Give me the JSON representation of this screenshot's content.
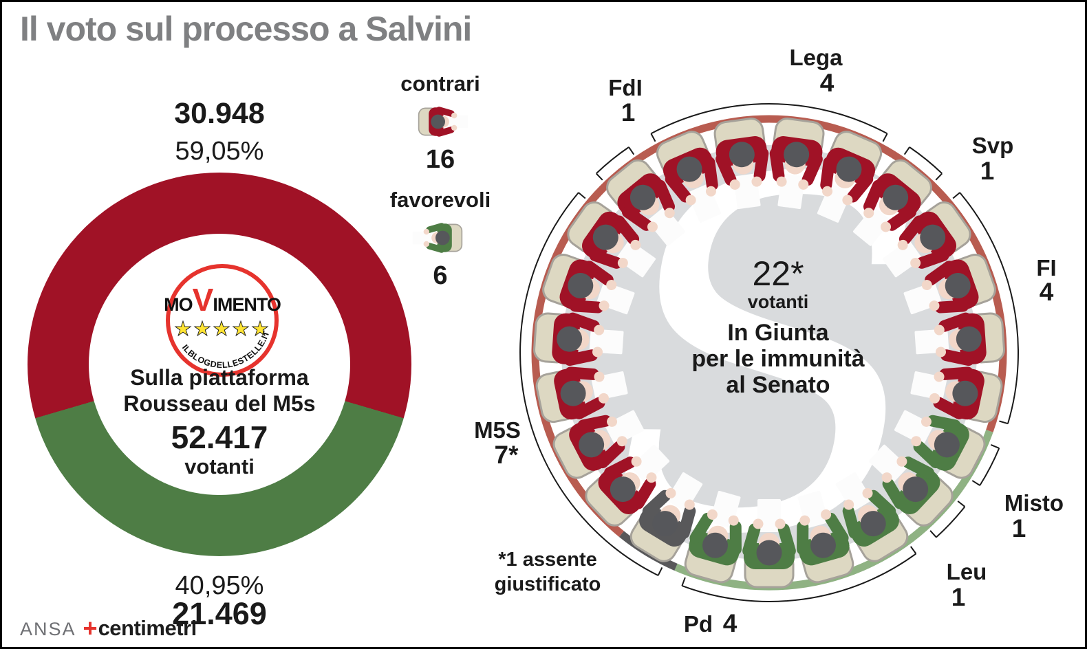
{
  "header": {
    "title": "Il voto sul processo a Salvini"
  },
  "footer": {
    "agency": "ANSA",
    "brand_plus": "+",
    "brand": "centimetri"
  },
  "colors": {
    "contrari": "#a01226",
    "favorevoli": "#4e7d45",
    "absent": "#58585a",
    "arc_contrari": "#b85c50",
    "arc_favorevoli": "#8fb283",
    "arc_absent": "#58585a",
    "hemicycle_fill": "#d9dbdd",
    "title": "#7f8082",
    "logo_ring": "#e6332d",
    "star": "#ffe433"
  },
  "chart_data": [
    {
      "id": "rousseau_donut",
      "type": "pie",
      "title": "Sulla piattaforma Rousseau del M5s",
      "title_lines": [
        "Sulla piattaforma",
        "Rousseau del M5s"
      ],
      "total_value": "52.417",
      "total_label": "votanti",
      "slices": [
        {
          "label": "contrari",
          "value": 30948,
          "display_value": "30.948",
          "pct": 59.05,
          "display_pct": "59,05%",
          "color_key": "contrari",
          "label_position": "top"
        },
        {
          "label": "favorevoli",
          "value": 21469,
          "display_value": "21.469",
          "pct": 40.95,
          "display_pct": "40,95%",
          "color_key": "favorevoli",
          "label_position": "bottom"
        }
      ],
      "logo": {
        "name": "Movimento 5 Stelle",
        "word_start": "MO",
        "word_v": "V",
        "word_end": "IMENTO",
        "stars": "★★★★★",
        "url": "ILBLOGDELLESTELLE.IT"
      }
    },
    {
      "id": "giunta_seatmap",
      "type": "seat_map",
      "center": {
        "value": "22*",
        "value_label": "votanti",
        "title_lines": [
          "In Giunta",
          "per le immunità",
          "al Senato"
        ],
        "watermark": "S"
      },
      "note_lines": [
        "*1 assente",
        "giustificato"
      ],
      "legend": [
        {
          "label": "contrari",
          "count": "16",
          "color_key": "contrari"
        },
        {
          "label": "favorevoli",
          "count": "6",
          "color_key": "favorevoli"
        }
      ],
      "parties": [
        {
          "name": "Lega",
          "count": "4",
          "seats": [
            "contrari",
            "contrari",
            "contrari",
            "contrari"
          ]
        },
        {
          "name": "Svp",
          "count": "1",
          "seats": [
            "contrari"
          ]
        },
        {
          "name": "FI",
          "count": "4",
          "seats": [
            "contrari",
            "contrari",
            "contrari",
            "contrari"
          ]
        },
        {
          "name": "Misto",
          "count": "1",
          "seats": [
            "favorevoli"
          ]
        },
        {
          "name": "Leu",
          "count": "1",
          "seats": [
            "favorevoli"
          ]
        },
        {
          "name": "Pd",
          "count": "4",
          "seats": [
            "favorevoli",
            "favorevoli",
            "favorevoli",
            "favorevoli"
          ]
        },
        {
          "name": "M5S",
          "count": "7*",
          "seats": [
            "absent",
            "contrari",
            "contrari",
            "contrari",
            "contrari",
            "contrari",
            "contrari"
          ]
        },
        {
          "name": "FdI",
          "count": "1",
          "seats": [
            "contrari"
          ]
        }
      ]
    }
  ]
}
